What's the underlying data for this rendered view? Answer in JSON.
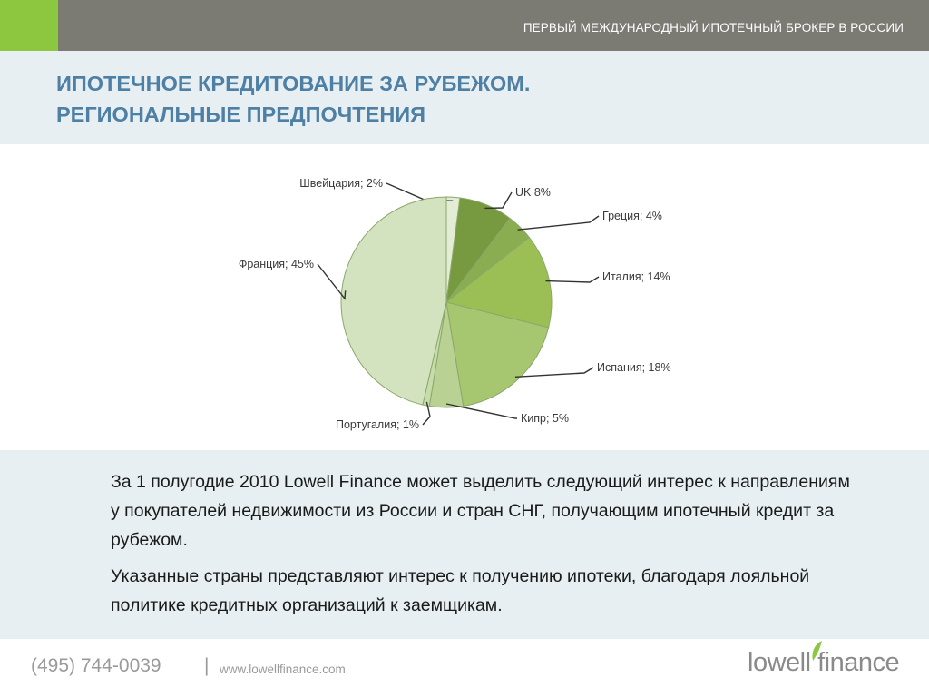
{
  "header": {
    "tagline": "ПЕРВЫЙ МЕЖДУНАРОДНЫЙ ИПОТЕЧНЫЙ БРОКЕР В РОССИИ",
    "accent_color": "#8dc63f",
    "bar_color": "#7b7b74"
  },
  "title": {
    "line1": "ИПОТЕЧНОЕ КРЕДИТОВАНИЕ ЗА РУБЕЖОМ.",
    "line2": "РЕГИОНАЛЬНЫЕ ПРЕДПОЧТЕНИЯ",
    "color": "#4e7fa4"
  },
  "chart_data": {
    "type": "pie",
    "title": "",
    "categories": [
      "Швейцария",
      "UK",
      "Греция",
      "Италия",
      "Испания",
      "Кипр",
      "Португалия",
      "Франция"
    ],
    "values": [
      2,
      8,
      4,
      14,
      18,
      5,
      1,
      45
    ],
    "data_labels": [
      "Швейцария; 2%",
      "UK 8%",
      "Греция; 4%",
      "Италия; 14%",
      "Испания; 18%",
      "Кипр; 5%",
      "Португалия; 1%",
      "Франция; 45%"
    ],
    "colors": [
      "#e3ecd4",
      "#77993f",
      "#8aad52",
      "#9bbf55",
      "#a7c670",
      "#b9d193",
      "#c8dbaa",
      "#d4e3bf"
    ],
    "legend": "none"
  },
  "description": {
    "p1": "За 1 полугодие 2010 Lowell Finance может выделить следующий интерес к направлениям у покупателей недвижимости из России и стран СНГ, получающим ипотечный кредит за рубежом.",
    "p2": "Указанные страны представляют интерес к получению ипотеки, благодаря лояльной политике кредитных организаций к заемщикам."
  },
  "footer": {
    "phone": "(495) 744-0039",
    "separator": "|",
    "website": "www.lowellfinance.com",
    "logo_text": "lowell finance"
  }
}
